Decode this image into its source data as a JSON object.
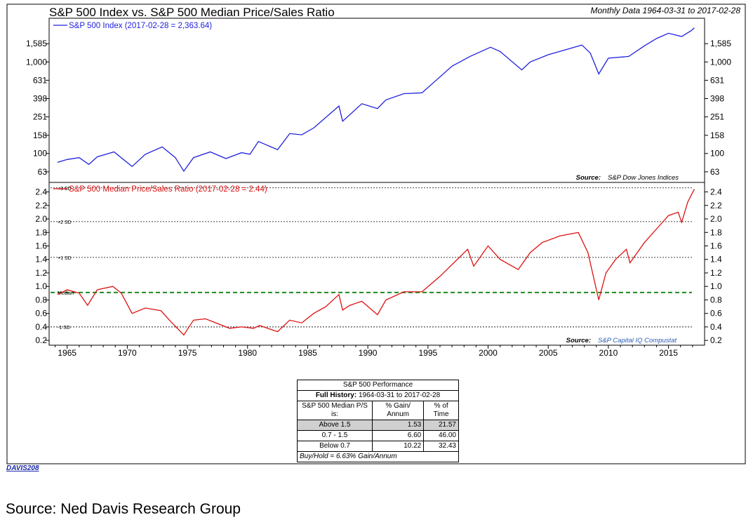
{
  "chart_data": [
    {
      "type": "line",
      "title": "S&P 500 Index vs. S&P 500 Median Price/Sales Ratio",
      "subtitle": "Monthly Data 1964-03-31 to 2017-02-28",
      "scale": "log",
      "series": [
        {
          "name": "S&P 500 Index (2017-02-28 = 2,363.64)",
          "color": "#2222dd",
          "points": [
            [
              1964.2,
              80
            ],
            [
              1965.0,
              86
            ],
            [
              1966.0,
              90
            ],
            [
              1966.8,
              76
            ],
            [
              1967.5,
              92
            ],
            [
              1968.9,
              104
            ],
            [
              1970.4,
              72
            ],
            [
              1971.5,
              98
            ],
            [
              1972.9,
              118
            ],
            [
              1974.0,
              90
            ],
            [
              1974.7,
              64
            ],
            [
              1975.5,
              90
            ],
            [
              1976.9,
              104
            ],
            [
              1978.2,
              88
            ],
            [
              1979.5,
              102
            ],
            [
              1980.2,
              98
            ],
            [
              1980.9,
              135
            ],
            [
              1982.5,
              110
            ],
            [
              1983.5,
              165
            ],
            [
              1984.5,
              160
            ],
            [
              1985.5,
              190
            ],
            [
              1987.6,
              330
            ],
            [
              1987.9,
              225
            ],
            [
              1989.5,
              350
            ],
            [
              1990.8,
              310
            ],
            [
              1991.5,
              385
            ],
            [
              1993.0,
              450
            ],
            [
              1994.5,
              460
            ],
            [
              1995.5,
              600
            ],
            [
              1997.0,
              900
            ],
            [
              1998.5,
              1150
            ],
            [
              2000.2,
              1450
            ],
            [
              2001.0,
              1300
            ],
            [
              2002.8,
              820
            ],
            [
              2003.5,
              1000
            ],
            [
              2005.0,
              1200
            ],
            [
              2007.8,
              1530
            ],
            [
              2008.5,
              1250
            ],
            [
              2009.2,
              740
            ],
            [
              2010.0,
              1100
            ],
            [
              2011.7,
              1150
            ],
            [
              2013.0,
              1500
            ],
            [
              2014.0,
              1800
            ],
            [
              2015.0,
              2060
            ],
            [
              2016.1,
              1900
            ],
            [
              2016.9,
              2200
            ],
            [
              2017.15,
              2363.64
            ]
          ]
        }
      ],
      "yticks": [
        63,
        100,
        158,
        251,
        398,
        631,
        1000,
        1585
      ],
      "ytick_labels": [
        "63",
        "100",
        "158",
        "251",
        "398",
        "631",
        "1,000",
        "1,585"
      ],
      "ylim": [
        50,
        2900
      ],
      "xlim": [
        1963.5,
        2018
      ],
      "source_label": "Source:",
      "source_value": "S&P Dow Jones Indices"
    },
    {
      "type": "line",
      "series": [
        {
          "name": "S&P 500 Median Price/Sales Ratio (2017-02-28 = 2.44)",
          "color": "#dd1111",
          "points": [
            [
              1964.2,
              0.88
            ],
            [
              1965.0,
              0.95
            ],
            [
              1966.0,
              0.9
            ],
            [
              1966.7,
              0.72
            ],
            [
              1967.5,
              0.95
            ],
            [
              1968.8,
              1.0
            ],
            [
              1969.5,
              0.9
            ],
            [
              1970.4,
              0.6
            ],
            [
              1971.5,
              0.68
            ],
            [
              1972.8,
              0.64
            ],
            [
              1973.5,
              0.5
            ],
            [
              1974.7,
              0.28
            ],
            [
              1975.5,
              0.5
            ],
            [
              1976.5,
              0.52
            ],
            [
              1977.5,
              0.45
            ],
            [
              1978.5,
              0.38
            ],
            [
              1979.5,
              0.4
            ],
            [
              1980.5,
              0.38
            ],
            [
              1981.0,
              0.42
            ],
            [
              1982.5,
              0.33
            ],
            [
              1983.5,
              0.5
            ],
            [
              1984.5,
              0.46
            ],
            [
              1985.5,
              0.6
            ],
            [
              1986.5,
              0.7
            ],
            [
              1987.6,
              0.88
            ],
            [
              1987.9,
              0.65
            ],
            [
              1988.5,
              0.72
            ],
            [
              1989.5,
              0.78
            ],
            [
              1990.8,
              0.58
            ],
            [
              1991.5,
              0.8
            ],
            [
              1993.0,
              0.92
            ],
            [
              1994.5,
              0.92
            ],
            [
              1996.0,
              1.15
            ],
            [
              1998.3,
              1.55
            ],
            [
              1998.8,
              1.3
            ],
            [
              2000.0,
              1.6
            ],
            [
              2001.0,
              1.4
            ],
            [
              2002.5,
              1.25
            ],
            [
              2003.5,
              1.5
            ],
            [
              2004.5,
              1.65
            ],
            [
              2006.0,
              1.75
            ],
            [
              2007.5,
              1.8
            ],
            [
              2008.3,
              1.5
            ],
            [
              2009.2,
              0.8
            ],
            [
              2009.8,
              1.2
            ],
            [
              2010.6,
              1.4
            ],
            [
              2011.5,
              1.55
            ],
            [
              2011.8,
              1.35
            ],
            [
              2013.0,
              1.65
            ],
            [
              2014.0,
              1.85
            ],
            [
              2015.0,
              2.05
            ],
            [
              2015.8,
              2.1
            ],
            [
              2016.1,
              1.95
            ],
            [
              2016.6,
              2.25
            ],
            [
              2017.15,
              2.44
            ]
          ]
        }
      ],
      "yticks": [
        0.2,
        0.4,
        0.6,
        0.8,
        1.0,
        1.2,
        1.4,
        1.6,
        1.8,
        2.0,
        2.2,
        2.4
      ],
      "ytick_labels": [
        "0.2",
        "0.4",
        "0.6",
        "0.8",
        "1.0",
        "1.2",
        "1.4",
        "1.6",
        "1.8",
        "2.0",
        "2.2",
        "2.4"
      ],
      "ylim": [
        0.15,
        2.52
      ],
      "xlim": [
        1963.5,
        2018
      ],
      "reference_lines": [
        {
          "label": "+3 SD",
          "value": 2.46
        },
        {
          "label": "+2 SD",
          "value": 1.96
        },
        {
          "label": "+1 SD",
          "value": 1.43
        },
        {
          "label": "Median",
          "value": 0.91
        },
        {
          "label": "-1 SD",
          "value": 0.4
        }
      ],
      "xticks": [
        1965,
        1970,
        1975,
        1980,
        1985,
        1990,
        1995,
        2000,
        2005,
        2010,
        2015
      ],
      "source_label": "Source:",
      "source_value": "S&P Capital IQ Compustat"
    }
  ],
  "performance_table": {
    "title": "S&P 500 Performance",
    "history_label": "Full History:",
    "history_range": "1964-03-31 to 2017-02-28",
    "row_header": "S&P 500 Median P/S is:",
    "col_gain": "% Gain/ Annum",
    "col_time": "% of Time",
    "rows": [
      {
        "label": "Above 1.5",
        "gain": "1.53",
        "time": "21.57"
      },
      {
        "label": "0.7 - 1.5",
        "gain": "6.60",
        "time": "46.00"
      },
      {
        "label": "Below 0.7",
        "gain": "10.22",
        "time": "32.43"
      }
    ],
    "footer": "Buy/Hold = 6.63% Gain/Annum"
  },
  "davis_code": "DAVIS208",
  "source_caption": "Source: Ned Davis Research Group",
  "colors": {
    "index_line": "#2222dd",
    "ratio_line": "#dd1111",
    "median_line": "#1f8a1f",
    "source_value_blue": "#2a5db0"
  }
}
